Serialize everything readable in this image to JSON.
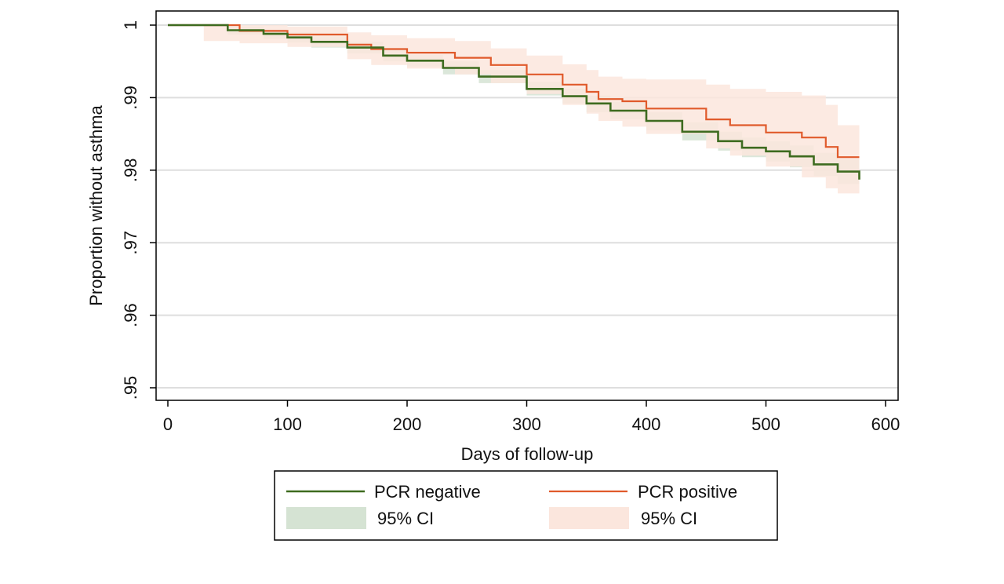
{
  "chart_data": {
    "type": "line",
    "step": true,
    "xlabel": "Days of follow-up",
    "ylabel": "Proportion without asthma",
    "xlim": [
      0,
      600
    ],
    "ylim": [
      0.95,
      1.0
    ],
    "x_ticks": [
      0,
      100,
      200,
      300,
      400,
      500,
      600
    ],
    "x_tick_labels": [
      "0",
      "100",
      "200",
      "300",
      "400",
      "500",
      "600"
    ],
    "y_ticks": [
      0.95,
      0.96,
      0.97,
      0.98,
      0.99,
      1.0
    ],
    "y_tick_labels": [
      ".95",
      ".96",
      ".97",
      ".98",
      ".99",
      "1"
    ],
    "grid": "horizontal",
    "legend_position": "bottom",
    "legend": [
      {
        "label": "PCR negative",
        "kind": "line",
        "series": 0
      },
      {
        "label": "PCR positive",
        "kind": "line",
        "series": 1
      },
      {
        "label": "95% CI",
        "kind": "band",
        "series": 0
      },
      {
        "label": "95% CI",
        "kind": "band",
        "series": 1
      }
    ],
    "series": [
      {
        "name": "PCR negative",
        "color": "#3d6b1f",
        "band_color": "#d5e3d3",
        "x": [
          0,
          30,
          50,
          80,
          100,
          120,
          150,
          180,
          200,
          230,
          260,
          300,
          330,
          350,
          370,
          400,
          430,
          460,
          480,
          500,
          520,
          540,
          560,
          578
        ],
        "y": [
          1.0,
          1.0,
          0.9993,
          0.9988,
          0.9983,
          0.9977,
          0.9969,
          0.9958,
          0.9951,
          0.9941,
          0.9929,
          0.9912,
          0.9902,
          0.9892,
          0.9882,
          0.9868,
          0.9853,
          0.984,
          0.9831,
          0.9826,
          0.9819,
          0.9808,
          0.9798,
          0.9787
        ],
        "ci_lower": [
          1.0,
          1.0,
          0.9987,
          0.9981,
          0.9976,
          0.9969,
          0.9961,
          0.995,
          0.9943,
          0.9932,
          0.992,
          0.9903,
          0.9892,
          0.988,
          0.987,
          0.9855,
          0.9841,
          0.9827,
          0.9818,
          0.9812,
          0.9804,
          0.9792,
          0.9781,
          0.977
        ],
        "ci_upper": [
          1.0,
          1.0,
          0.9998,
          0.9994,
          0.999,
          0.9984,
          0.9977,
          0.9966,
          0.9959,
          0.995,
          0.9938,
          0.9922,
          0.9912,
          0.9903,
          0.9894,
          0.988,
          0.9866,
          0.9853,
          0.9845,
          0.984,
          0.9834,
          0.9824,
          0.9815,
          0.9805
        ]
      },
      {
        "name": "PCR positive",
        "color": "#e05a2b",
        "band_color": "#fbe6dd",
        "x": [
          0,
          30,
          60,
          100,
          150,
          170,
          200,
          240,
          270,
          300,
          330,
          350,
          360,
          380,
          400,
          450,
          470,
          500,
          530,
          550,
          560,
          578
        ],
        "y": [
          1.0,
          1.0,
          0.9992,
          0.9987,
          0.9973,
          0.9967,
          0.9962,
          0.9955,
          0.9945,
          0.9932,
          0.9918,
          0.9908,
          0.9898,
          0.9895,
          0.9885,
          0.987,
          0.9862,
          0.9852,
          0.9845,
          0.9832,
          0.9818,
          0.9818
        ],
        "ci_lower": [
          1.0,
          0.9978,
          0.9975,
          0.997,
          0.9953,
          0.9945,
          0.994,
          0.9932,
          0.992,
          0.9905,
          0.989,
          0.9878,
          0.9868,
          0.986,
          0.985,
          0.983,
          0.982,
          0.9805,
          0.979,
          0.9775,
          0.9768,
          0.9766
        ],
        "ci_upper": [
          1.0,
          1.0,
          1.0,
          0.9998,
          0.999,
          0.9986,
          0.9982,
          0.9978,
          0.9968,
          0.9958,
          0.9946,
          0.9938,
          0.9929,
          0.9926,
          0.9925,
          0.9918,
          0.9912,
          0.9908,
          0.9903,
          0.989,
          0.9862,
          0.986
        ]
      }
    ]
  }
}
